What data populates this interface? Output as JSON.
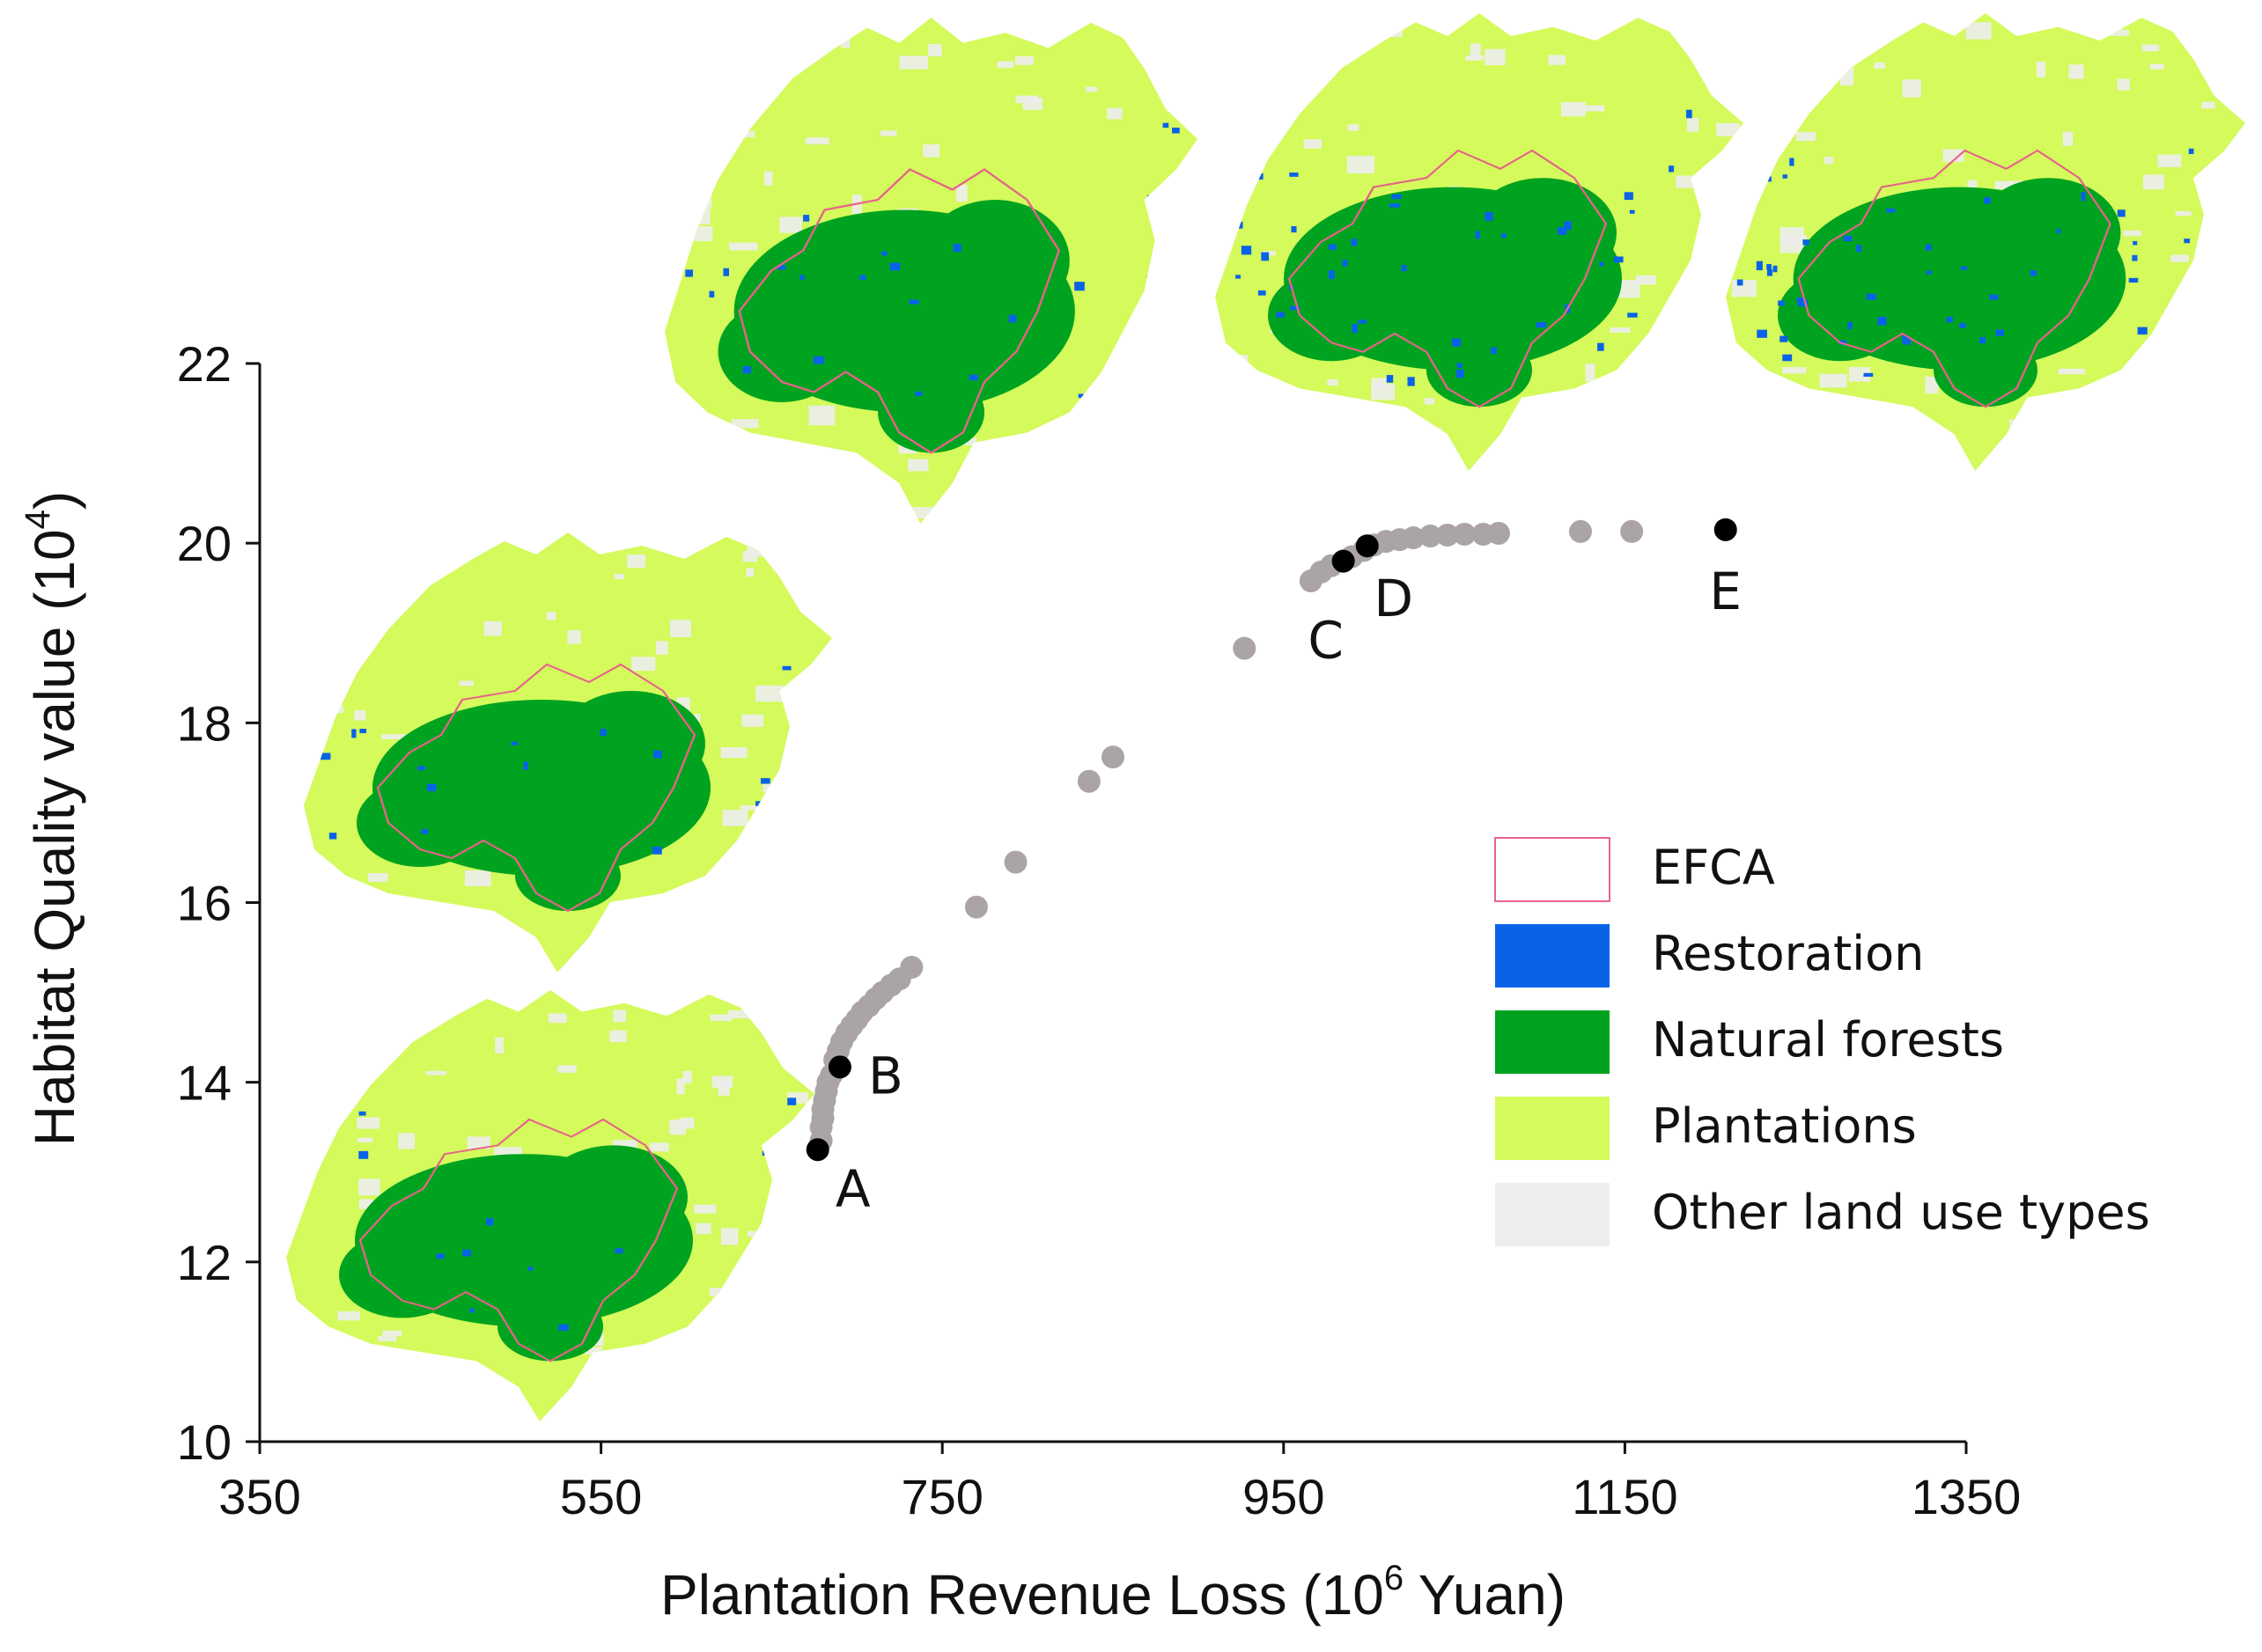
{
  "chart_data": {
    "type": "scatter",
    "xlabel": "Plantation Revenue Loss (10",
    "xlabel_sup": "6",
    "xlabel_suffix": " Yuan)",
    "ylabel": "Habitat Quality value (10",
    "ylabel_sup": "4",
    "ylabel_suffix": ")",
    "xlim": [
      350,
      1350
    ],
    "ylim": [
      10,
      22
    ],
    "xticks": [
      "350",
      "550",
      "750",
      "950",
      "1150",
      "1350"
    ],
    "yticks": [
      "10",
      "12",
      "14",
      "16",
      "18",
      "20",
      "22"
    ],
    "grid": false,
    "points_color": "#aaa5a4",
    "highlight_color": "#000000",
    "points": [
      [
        679,
        13.35
      ],
      [
        679,
        13.5
      ],
      [
        680,
        13.6
      ],
      [
        680,
        13.7
      ],
      [
        681,
        13.8
      ],
      [
        682,
        13.9
      ],
      [
        683,
        14.0
      ],
      [
        685,
        14.08
      ],
      [
        687,
        14.25
      ],
      [
        689,
        14.35
      ],
      [
        691,
        14.45
      ],
      [
        694,
        14.55
      ],
      [
        697,
        14.63
      ],
      [
        700,
        14.7
      ],
      [
        703,
        14.78
      ],
      [
        707,
        14.85
      ],
      [
        711,
        14.93
      ],
      [
        715,
        15.0
      ],
      [
        720,
        15.08
      ],
      [
        725,
        15.15
      ],
      [
        732,
        15.28
      ],
      [
        770,
        15.95
      ],
      [
        793,
        16.45
      ],
      [
        836,
        17.35
      ],
      [
        850,
        17.62
      ],
      [
        927,
        18.83
      ],
      [
        966,
        19.58
      ],
      [
        972,
        19.68
      ],
      [
        978,
        19.75
      ],
      [
        990,
        19.85
      ],
      [
        997,
        19.92
      ],
      [
        1003,
        19.98
      ],
      [
        1010,
        20.02
      ],
      [
        1018,
        20.04
      ],
      [
        1026,
        20.06
      ],
      [
        1036,
        20.08
      ],
      [
        1046,
        20.09
      ],
      [
        1056,
        20.1
      ],
      [
        1067,
        20.1
      ],
      [
        1076,
        20.11
      ],
      [
        1124,
        20.13
      ],
      [
        1154,
        20.13
      ]
    ],
    "highlights": [
      {
        "label": "A",
        "x": 677,
        "y": 13.25
      },
      {
        "label": "B",
        "x": 690,
        "y": 14.17
      },
      {
        "label": "C",
        "x": 985,
        "y": 19.8
      },
      {
        "label": "D",
        "x": 999,
        "y": 19.97
      },
      {
        "label": "E",
        "x": 1209,
        "y": 20.15
      }
    ],
    "legend_placement": "right",
    "legend": [
      {
        "label": "EFCA",
        "color": "#ffffff",
        "border": "#e8638a"
      },
      {
        "label": "Restoration",
        "color": "#0a63e6"
      },
      {
        "label": "Natural forests",
        "color": "#00a31f"
      },
      {
        "label": "Plantations",
        "color": "#d4fa5c"
      },
      {
        "label": "Other land use types",
        "color": "#ededed"
      }
    ]
  }
}
